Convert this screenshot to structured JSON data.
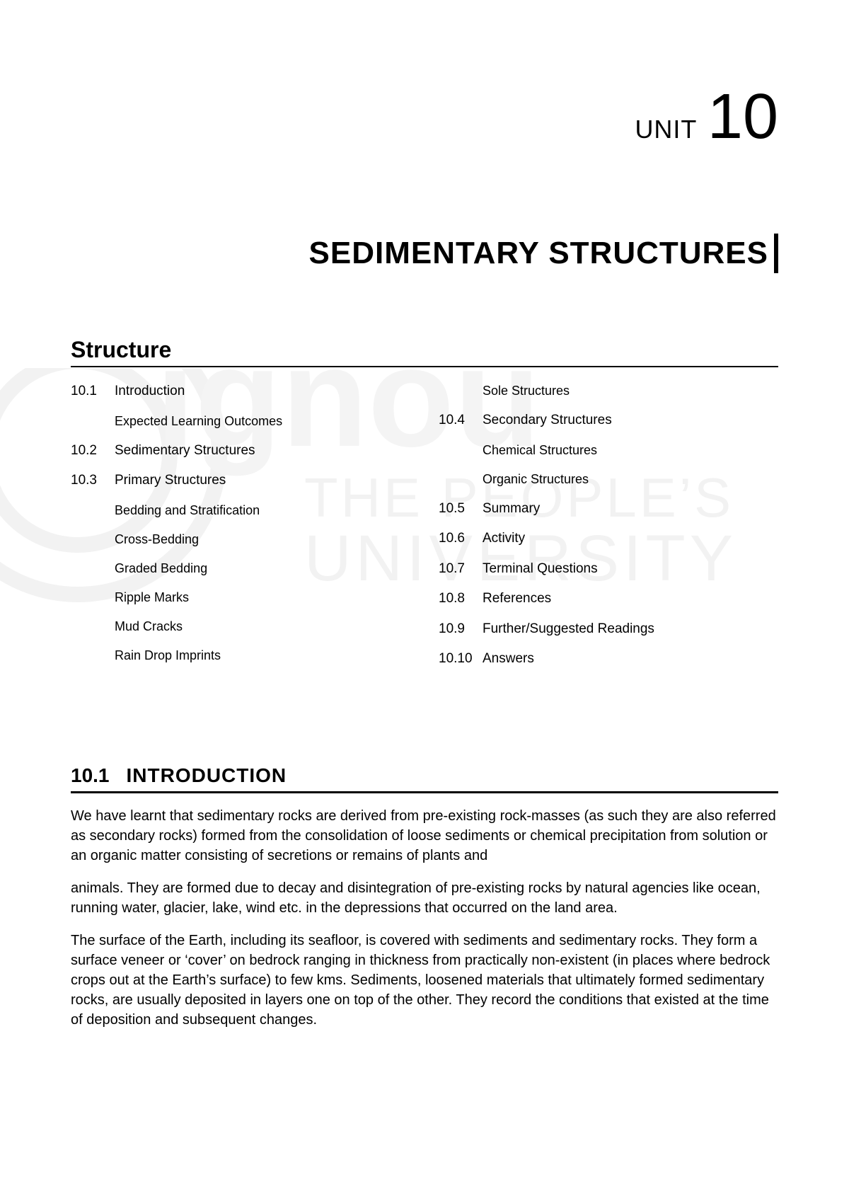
{
  "unit": {
    "label": "UNIT",
    "number": "10"
  },
  "title": "SEDIMENTARY STRUCTURES",
  "structure_heading": "Structure",
  "toc": {
    "left": [
      {
        "num": "10.1",
        "text": "Introduction",
        "sub": false
      },
      {
        "num": "",
        "text": "Expected Learning Outcomes",
        "sub": true
      },
      {
        "num": "10.2",
        "text": "Sedimentary Structures",
        "sub": false
      },
      {
        "num": "10.3",
        "text": "Primary Structures",
        "sub": false
      },
      {
        "num": "",
        "text": "Bedding and Stratification",
        "sub": true
      },
      {
        "num": "",
        "text": "Cross-Bedding",
        "sub": true
      },
      {
        "num": "",
        "text": "Graded Bedding",
        "sub": true
      },
      {
        "num": "",
        "text": "Ripple Marks",
        "sub": true
      },
      {
        "num": "",
        "text": "Mud Cracks",
        "sub": true
      },
      {
        "num": "",
        "text": "Rain Drop Imprints",
        "sub": true
      }
    ],
    "right": [
      {
        "num": "",
        "text": "Sole Structures",
        "sub": true
      },
      {
        "num": "10.4",
        "text": "Secondary Structures",
        "sub": false
      },
      {
        "num": "",
        "text": "Chemical Structures",
        "sub": true
      },
      {
        "num": "",
        "text": "Organic Structures",
        "sub": true
      },
      {
        "num": "10.5",
        "text": "Summary",
        "sub": false
      },
      {
        "num": "10.6",
        "text": "Activity",
        "sub": false
      },
      {
        "num": "10.7",
        "text": "Terminal Questions",
        "sub": false
      },
      {
        "num": "10.8",
        "text": "References",
        "sub": false
      },
      {
        "num": "10.9",
        "text": "Further/Suggested Readings",
        "sub": false
      },
      {
        "num": "10.10",
        "text": "Answers",
        "sub": false
      }
    ]
  },
  "section": {
    "number": "10.1",
    "title": "INTRODUCTION"
  },
  "paragraphs": [
    "We have learnt that sedimentary rocks are derived from pre-existing rock-masses (as such they are also referred as secondary rocks) formed from the consolidation of loose sediments or chemical precipitation from solution or an organic matter consisting of secretions or remains of plants and",
    "animals. They are formed due to decay and disintegration of pre-existing rocks by natural agencies like ocean, running water, glacier, lake, wind etc. in the depressions that occurred on the land area.",
    "The surface of the Earth, including its seafloor, is covered with sediments and sedimentary rocks. They form a surface veneer or ‘cover’ on bedrock ranging in thickness from practically non-existent (in places where bedrock crops out at the Earth’s surface) to few kms. Sediments, loosened materials that ultimately formed sedimentary rocks, are usually deposited in layers one on top of the other. They record the conditions that existed at the time of deposition and subsequent changes."
  ],
  "watermark": {
    "line1": "ignou",
    "line2": "THE PEOPLE’S",
    "line3": "UNIVERSITY",
    "color": "#f4f4f4",
    "circle_stroke": "#f2f2f2"
  }
}
